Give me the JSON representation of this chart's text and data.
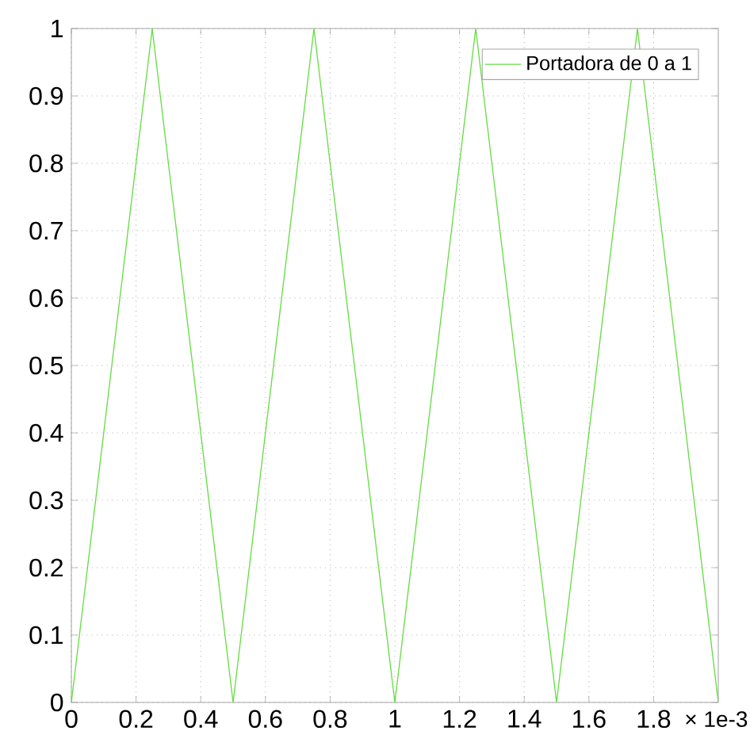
{
  "chart_data": {
    "type": "line",
    "xlabel": "× 1e-3",
    "x": [
      0,
      0.25,
      0.5,
      0.75,
      1,
      1.25,
      1.5,
      1.75,
      2
    ],
    "series": [
      {
        "name": "Portadora de 0 a 1",
        "color": "#66dd44",
        "values": [
          0,
          1,
          0,
          1,
          0,
          1,
          0,
          1,
          0
        ]
      }
    ],
    "xlim": [
      0,
      2
    ],
    "ylim": [
      0,
      1
    ],
    "xticks": [
      0,
      0.2,
      0.4,
      0.6,
      0.8,
      1,
      1.2,
      1.4,
      1.6,
      1.8
    ],
    "yticks": [
      0,
      0.1,
      0.2,
      0.3,
      0.4,
      0.5,
      0.6,
      0.7,
      0.8,
      0.9,
      1
    ],
    "grid": true,
    "legend": "top right",
    "marker": "none",
    "line_style": "solid"
  }
}
